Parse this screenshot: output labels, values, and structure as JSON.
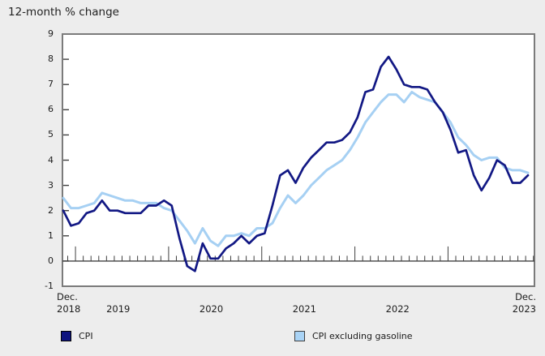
{
  "title": "12-month % change",
  "colors": {
    "background": "#ededed",
    "plot_background": "#ffffff",
    "box_border": "#7b7b7b",
    "axis": "#404040",
    "text": "#1c1c1c",
    "cpi_line": "#121884",
    "cpi_excluding_gasoline_line": "#a6d0f3"
  },
  "y_axis": {
    "tick_labels": [
      "9",
      "8",
      "7",
      "6",
      "5",
      "4",
      "3",
      "2",
      "1",
      "0",
      "-1"
    ],
    "max": 9,
    "min": -1
  },
  "x_axis": {
    "start_month": "Dec.",
    "start_year": "2018",
    "mid_year_labels": [
      "2019",
      "2020",
      "2021",
      "2022"
    ],
    "end_month": "Dec.",
    "end_year": "2023"
  },
  "legend": [
    {
      "label": "CPI",
      "swatch_color": "#0f1480",
      "swatch_border": "#000000"
    },
    {
      "label": "CPI excluding gasoline",
      "swatch_color": "#a9d3f5",
      "swatch_border": "#404040"
    }
  ],
  "chart_data": {
    "type": "line",
    "title": "12-month % change",
    "x_start": "Dec 2018",
    "x_end": "Dec 2023",
    "frequency": "monthly",
    "ylim": [
      -1,
      9
    ],
    "grid": false,
    "legend_position": "bottom",
    "series": [
      {
        "name": "CPI",
        "color": "#121884",
        "values": [
          2.0,
          1.4,
          1.5,
          1.9,
          2.0,
          2.4,
          2.0,
          2.0,
          1.9,
          1.9,
          1.9,
          2.2,
          2.2,
          2.4,
          2.2,
          0.9,
          -0.2,
          -0.4,
          0.7,
          0.1,
          0.1,
          0.5,
          0.7,
          1.0,
          0.7,
          1.0,
          1.1,
          2.2,
          3.4,
          3.6,
          3.1,
          3.7,
          4.1,
          4.4,
          4.7,
          4.7,
          4.8,
          5.1,
          5.7,
          6.7,
          6.8,
          7.7,
          8.1,
          7.6,
          7.0,
          6.9,
          6.9,
          6.8,
          6.3,
          5.9,
          5.2,
          4.3,
          4.4,
          3.4,
          2.8,
          3.3,
          4.0,
          3.8,
          3.1,
          3.1,
          3.4
        ]
      },
      {
        "name": "CPI excluding gasoline",
        "color": "#a6d0f3",
        "values": [
          2.5,
          2.1,
          2.1,
          2.2,
          2.3,
          2.7,
          2.6,
          2.5,
          2.4,
          2.4,
          2.3,
          2.3,
          2.3,
          2.1,
          2.0,
          1.6,
          1.2,
          0.7,
          1.3,
          0.8,
          0.6,
          1.0,
          1.0,
          1.1,
          1.0,
          1.3,
          1.3,
          1.5,
          2.1,
          2.6,
          2.3,
          2.6,
          3.0,
          3.3,
          3.6,
          3.8,
          4.0,
          4.4,
          4.9,
          5.5,
          5.9,
          6.3,
          6.6,
          6.6,
          6.3,
          6.7,
          6.5,
          6.4,
          6.3,
          5.9,
          5.5,
          4.9,
          4.6,
          4.2,
          4.0,
          4.1,
          4.1,
          3.7,
          3.6,
          3.6,
          3.5
        ]
      }
    ]
  }
}
